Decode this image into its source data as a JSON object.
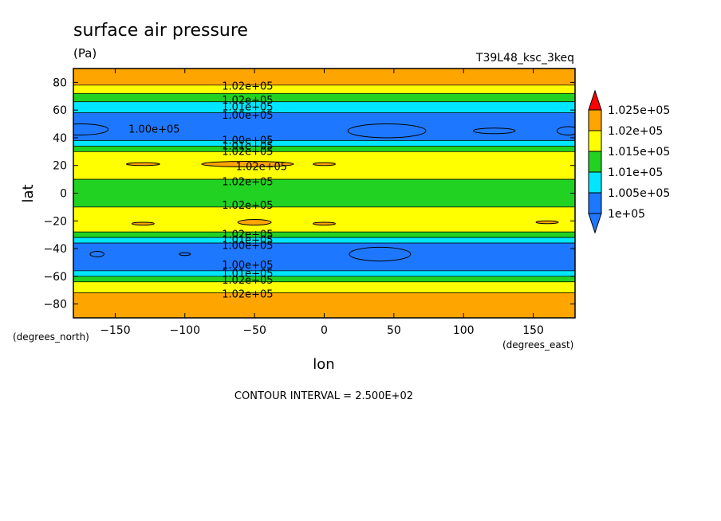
{
  "chart_data": {
    "type": "heatmap",
    "title": "surface air pressure",
    "units": "(Pa)",
    "run_label": "T39L48_ksc_3keq",
    "xlabel": "lon",
    "ylabel": "lat",
    "x_units": "(degrees_east)",
    "y_units": "(degrees_north)",
    "xlim": [
      -180,
      180
    ],
    "ylim": [
      -90,
      90
    ],
    "x_ticks": [
      -150,
      -100,
      -50,
      0,
      50,
      100,
      150
    ],
    "y_ticks": [
      -80,
      -60,
      -40,
      -20,
      0,
      20,
      40,
      60,
      80
    ],
    "contour_interval_text": "CONTOUR INTERVAL = 2.500E+02",
    "colorbar": {
      "levels": [
        "1e+05",
        "1.005e+05",
        "1.01e+05",
        "1.015e+05",
        "1.02e+05",
        "1.025e+05"
      ],
      "colors": [
        "#1e78ff",
        "#00e6ff",
        "#22d222",
        "#ffff00",
        "#ffa500",
        "#ff0000"
      ]
    },
    "zonal_bands": [
      {
        "lat_from": 90,
        "lat_to": 78,
        "value": 102250
      },
      {
        "lat_from": 78,
        "lat_to": 72,
        "value": 101750
      },
      {
        "lat_from": 72,
        "lat_to": 66,
        "value": 101250
      },
      {
        "lat_from": 66,
        "lat_to": 58,
        "value": 100750
      },
      {
        "lat_from": 58,
        "lat_to": 38,
        "value": 100250
      },
      {
        "lat_from": 38,
        "lat_to": 34,
        "value": 100750
      },
      {
        "lat_from": 34,
        "lat_to": 30,
        "value": 101250
      },
      {
        "lat_from": 30,
        "lat_to": 10,
        "value": 101750
      },
      {
        "lat_from": 10,
        "lat_to": -10,
        "value": 101250
      },
      {
        "lat_from": -10,
        "lat_to": -28,
        "value": 101750
      },
      {
        "lat_from": -28,
        "lat_to": -32,
        "value": 101250
      },
      {
        "lat_from": -32,
        "lat_to": -36,
        "value": 100750
      },
      {
        "lat_from": -36,
        "lat_to": -56,
        "value": 100250
      },
      {
        "lat_from": -56,
        "lat_to": -60,
        "value": 100750
      },
      {
        "lat_from": -60,
        "lat_to": -64,
        "value": 101250
      },
      {
        "lat_from": -64,
        "lat_to": -72,
        "value": 101750
      },
      {
        "lat_from": -72,
        "lat_to": -90,
        "value": 102250
      }
    ],
    "patches": [
      {
        "lon_c": -175,
        "lat_c": 46,
        "lon_r": 20,
        "lat_r": 4,
        "value": 99900
      },
      {
        "lon_c": 45,
        "lat_c": 45,
        "lon_r": 28,
        "lat_r": 5,
        "value": 99900
      },
      {
        "lon_c": 122,
        "lat_c": 45,
        "lon_r": 15,
        "lat_r": 2,
        "value": 99900
      },
      {
        "lon_c": 175,
        "lat_c": 45,
        "lon_r": 8,
        "lat_r": 3,
        "value": 99900
      },
      {
        "lon_c": -55,
        "lat_c": 21,
        "lon_r": 33,
        "lat_r": 2,
        "value": 102250
      },
      {
        "lon_c": -130,
        "lat_c": 21,
        "lon_r": 12,
        "lat_r": 1,
        "value": 102250
      },
      {
        "lon_c": 0,
        "lat_c": 21,
        "lon_r": 8,
        "lat_r": 1,
        "value": 102250
      },
      {
        "lon_c": -50,
        "lat_c": -21,
        "lon_r": 12,
        "lat_r": 2,
        "value": 102250
      },
      {
        "lon_c": -130,
        "lat_c": -22,
        "lon_r": 8,
        "lat_r": 1,
        "value": 102250
      },
      {
        "lon_c": 0,
        "lat_c": -22,
        "lon_r": 8,
        "lat_r": 1,
        "value": 102250
      },
      {
        "lon_c": 160,
        "lat_c": -21,
        "lon_r": 8,
        "lat_r": 1,
        "value": 102250
      },
      {
        "lon_c": -163,
        "lat_c": -44,
        "lon_r": 5,
        "lat_r": 2,
        "value": 99900
      },
      {
        "lon_c": -100,
        "lat_c": -44,
        "lon_r": 4,
        "lat_r": 1,
        "value": 99900
      },
      {
        "lon_c": 40,
        "lat_c": -44,
        "lon_r": 22,
        "lat_r": 5,
        "value": 99900
      }
    ],
    "contour_labels": [
      {
        "text": "1.02e+05",
        "lon": -55,
        "lat": 77
      },
      {
        "text": "1.02e+05",
        "lon": -55,
        "lat": 67
      },
      {
        "text": "1.01e+05",
        "lon": -55,
        "lat": 62
      },
      {
        "text": "1.00e+05",
        "lon": -55,
        "lat": 56
      },
      {
        "text": "1.00e+05",
        "lon": -122,
        "lat": 46
      },
      {
        "text": "1.00e+05",
        "lon": -55,
        "lat": 38
      },
      {
        "text": "1.01e+05",
        "lon": -55,
        "lat": 34
      },
      {
        "text": "1.02e+05",
        "lon": -55,
        "lat": 30
      },
      {
        "text": "1.02e+05",
        "lon": -45,
        "lat": 19
      },
      {
        "text": "1.02e+05",
        "lon": -55,
        "lat": 8
      },
      {
        "text": "1.02e+05",
        "lon": -55,
        "lat": -9
      },
      {
        "text": "1.02e+05",
        "lon": -55,
        "lat": -30
      },
      {
        "text": "1.01e+05",
        "lon": -55,
        "lat": -34
      },
      {
        "text": "1.00e+05",
        "lon": -55,
        "lat": -38
      },
      {
        "text": "1.00e+05",
        "lon": -55,
        "lat": -52
      },
      {
        "text": "1.01e+05",
        "lon": -55,
        "lat": -58
      },
      {
        "text": "1.02e+05",
        "lon": -55,
        "lat": -63
      },
      {
        "text": "1.02e+05",
        "lon": -55,
        "lat": -73
      }
    ]
  }
}
